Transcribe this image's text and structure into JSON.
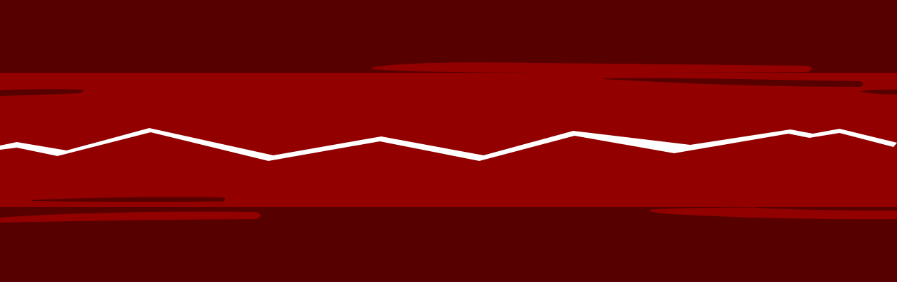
{
  "colors": {
    "dark_band": "#560000",
    "mid_band": "#920000",
    "zigzag_line": "#ffffff"
  }
}
